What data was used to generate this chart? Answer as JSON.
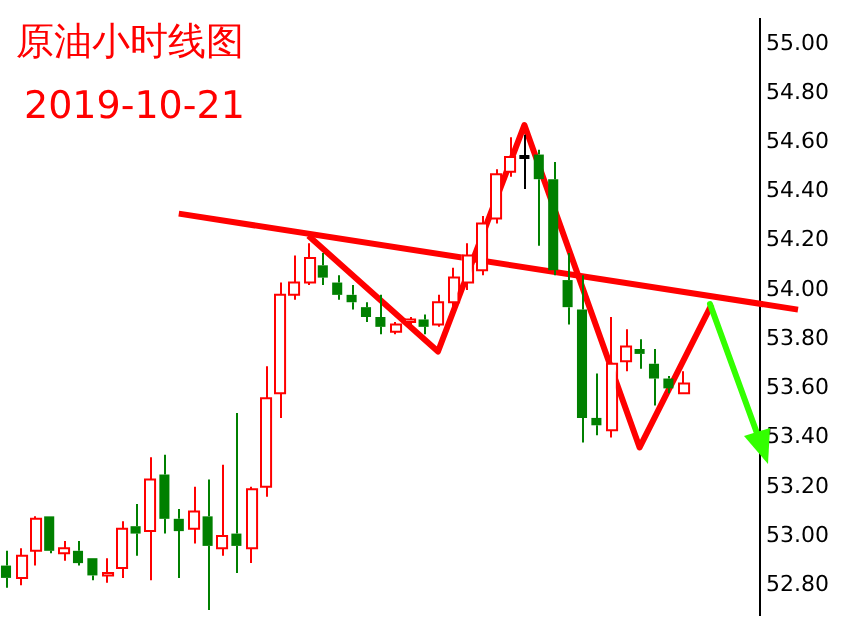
{
  "chart_data": {
    "type": "candlestick",
    "title": "原油小时线图",
    "subtitle": "2019-10-21",
    "categories": [
      null,
      null,
      null,
      null,
      null,
      null,
      null,
      null,
      null,
      null,
      null,
      null,
      null,
      null,
      null,
      null,
      null,
      null,
      null,
      null,
      null,
      null,
      null,
      null,
      null,
      null,
      null,
      null,
      null,
      null,
      null,
      null,
      null,
      null,
      null,
      null,
      null,
      null,
      null,
      null,
      null,
      null,
      null,
      null,
      null,
      null,
      null,
      null,
      null,
      null,
      null,
      null,
      null,
      null,
      null,
      null
    ],
    "ohlc": [
      [
        52.88,
        52.94,
        52.79,
        52.83
      ],
      [
        52.83,
        52.95,
        52.8,
        52.92
      ],
      [
        52.94,
        53.08,
        52.88,
        53.07
      ],
      [
        53.08,
        53.08,
        52.93,
        52.94
      ],
      [
        52.93,
        52.98,
        52.9,
        52.95
      ],
      [
        52.94,
        52.98,
        52.88,
        52.89
      ],
      [
        52.91,
        52.91,
        52.82,
        52.84
      ],
      [
        52.84,
        52.91,
        52.81,
        52.85
      ],
      [
        52.87,
        53.06,
        52.83,
        53.03
      ],
      [
        53.04,
        53.13,
        52.92,
        53.01
      ],
      [
        53.02,
        53.32,
        52.82,
        53.23
      ],
      [
        53.25,
        53.33,
        53.01,
        53.07
      ],
      [
        53.07,
        53.11,
        52.83,
        53.02
      ],
      [
        53.03,
        53.2,
        52.97,
        53.1
      ],
      [
        53.08,
        53.23,
        52.7,
        52.96
      ],
      [
        52.95,
        53.29,
        52.92,
        53
      ],
      [
        53.01,
        53.5,
        52.85,
        52.96
      ],
      [
        52.95,
        53.2,
        52.89,
        53.19
      ],
      [
        53.2,
        53.69,
        53.16,
        53.56
      ],
      [
        53.58,
        54.03,
        53.48,
        53.98
      ],
      [
        53.98,
        54.14,
        53.96,
        54.03
      ],
      [
        54.03,
        54.19,
        54.02,
        54.13
      ],
      [
        54.1,
        54.15,
        54.02,
        54.05
      ],
      [
        54.03,
        54.06,
        53.96,
        53.98
      ],
      [
        53.98,
        54.02,
        53.92,
        53.95
      ],
      [
        53.93,
        53.95,
        53.87,
        53.89
      ],
      [
        53.89,
        53.98,
        53.82,
        53.85
      ],
      [
        53.83,
        53.87,
        53.82,
        53.86
      ],
      [
        53.87,
        53.89,
        53.85,
        53.88
      ],
      [
        53.88,
        53.9,
        53.82,
        53.85
      ],
      [
        53.86,
        53.98,
        53.85,
        53.95
      ],
      [
        53.95,
        54.09,
        53.93,
        54.05
      ],
      [
        54.03,
        54.19,
        54,
        54.14
      ],
      [
        54.08,
        54.3,
        54.06,
        54.27
      ],
      [
        54.29,
        54.49,
        54.27,
        54.47
      ],
      [
        54.48,
        54.62,
        54.46,
        54.54
      ],
      [
        54.54,
        54.63,
        54.41,
        54.54
      ],
      [
        54.55,
        54.57,
        54.18,
        54.45
      ],
      [
        54.45,
        54.52,
        54.06,
        54.08
      ],
      [
        54.04,
        54.15,
        53.86,
        53.93
      ],
      [
        53.92,
        54.06,
        53.38,
        53.48
      ],
      [
        53.48,
        53.66,
        53.41,
        53.45
      ],
      [
        53.43,
        53.89,
        53.4,
        53.7
      ],
      [
        53.71,
        53.84,
        53.67,
        53.77
      ],
      [
        53.76,
        53.8,
        53.68,
        53.74
      ],
      [
        53.7,
        53.76,
        53.53,
        53.64
      ],
      [
        53.64,
        53.65,
        53.58,
        53.6
      ],
      [
        53.58,
        53.67,
        53.58,
        53.62
      ],
      null,
      null,
      null,
      null,
      null,
      null,
      null,
      null
    ],
    "ylim": [
      52.68,
      55.1
    ],
    "yticks": [
      {
        "value": 52.8,
        "label": "52.80"
      },
      {
        "value": 53,
        "label": "53.00"
      },
      {
        "value": 53.2,
        "label": "53.20"
      },
      {
        "value": 53.4,
        "label": "53.40"
      },
      {
        "value": 53.6,
        "label": "53.60"
      },
      {
        "value": 53.8,
        "label": "53.80"
      },
      {
        "value": 54,
        "label": "54.00"
      },
      {
        "value": 54.2,
        "label": "54.20"
      },
      {
        "value": 54.4,
        "label": "54.40"
      },
      {
        "value": 54.6,
        "label": "54.60"
      },
      {
        "value": 54.8,
        "label": "54.80"
      },
      {
        "value": 55,
        "label": "55.00"
      }
    ],
    "series": [
      {
        "type": "line",
        "color": "#ff0000",
        "values": [
          null,
          null,
          null,
          null,
          null,
          null,
          null,
          null,
          null,
          null,
          null,
          null,
          54.31,
          null,
          null,
          null,
          null,
          null,
          null,
          null,
          null,
          null,
          null,
          null,
          null,
          null,
          null,
          null,
          null,
          null,
          null,
          null,
          null,
          null,
          null,
          null,
          null,
          null,
          null,
          null,
          null,
          null,
          null,
          null,
          null,
          null,
          null,
          null,
          null,
          null,
          null,
          null,
          null,
          null,
          null,
          53.92
        ]
      },
      {
        "type": "line",
        "color": "#ff0000",
        "values": [
          null,
          null,
          null,
          null,
          null,
          null,
          null,
          null,
          null,
          null,
          null,
          null,
          null,
          null,
          null,
          null,
          null,
          null,
          null,
          null,
          null,
          54.22,
          null,
          null,
          null,
          null,
          null,
          null,
          null,
          null,
          53.75,
          null,
          null,
          null,
          null,
          null,
          54.67,
          null,
          null,
          null,
          null,
          null,
          null,
          null,
          53.36,
          null,
          null,
          null,
          null,
          53.94,
          null,
          null,
          null,
          null,
          null,
          null
        ]
      }
    ],
    "grid": false,
    "legend": false,
    "marker": "none",
    "tick_labels": "y"
  }
}
